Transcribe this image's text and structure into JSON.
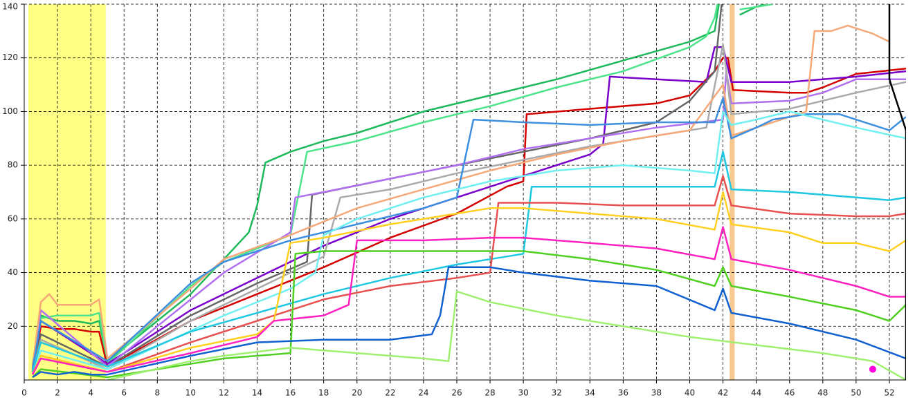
{
  "chart_data": {
    "type": "line",
    "xlim": [
      0,
      53
    ],
    "ylim": [
      0,
      140
    ],
    "xticks": [
      0,
      2,
      4,
      6,
      8,
      10,
      12,
      14,
      16,
      18,
      20,
      22,
      24,
      26,
      28,
      30,
      32,
      34,
      36,
      38,
      40,
      42,
      44,
      46,
      48,
      50,
      52
    ],
    "yticks": [
      20,
      40,
      60,
      80,
      100,
      120,
      140
    ],
    "grid": true,
    "bands": [
      {
        "x": [
          0.25,
          4.9
        ],
        "color": "#ffff70"
      },
      {
        "x": [
          42.4,
          42.7
        ],
        "color": "#f5c080"
      }
    ],
    "marker": {
      "x": 51,
      "y": 4,
      "color": "#ff00dd"
    },
    "series": [
      {
        "color": "#1db95a",
        "x": [
          0.5,
          1,
          2,
          3,
          4,
          4.5,
          5,
          8,
          10,
          12,
          13.5,
          14,
          14.5,
          16,
          18,
          20,
          24,
          28,
          32,
          36,
          40,
          41.5,
          42,
          42.4,
          43,
          44,
          44.5
        ],
        "values": [
          5,
          24,
          22,
          22,
          21,
          22,
          7,
          22,
          32,
          45,
          55,
          65,
          81,
          85,
          89,
          92,
          100,
          106,
          112,
          119,
          126,
          130,
          150,
          null,
          136,
          139,
          140
        ]
      },
      {
        "color": "#4de38a",
        "x": [
          0.5,
          1,
          2,
          3,
          4,
          4.5,
          5,
          10,
          12,
          16,
          17,
          20,
          24,
          28,
          32,
          36,
          40,
          41,
          41.5,
          42,
          42.4,
          43,
          45
        ],
        "values": [
          6,
          23,
          24,
          24,
          24,
          25,
          6,
          35,
          44,
          54,
          85,
          89,
          96,
          102,
          109,
          115,
          124,
          128,
          135,
          150,
          null,
          138,
          140
        ]
      },
      {
        "color": "#d40000",
        "x": [
          0.5,
          1,
          2,
          3,
          4,
          4.5,
          5,
          10,
          14,
          18,
          22,
          26,
          29,
          30,
          30.2,
          34,
          38,
          40,
          41.5,
          42,
          42.3,
          42.6,
          46,
          47,
          48,
          50,
          53
        ],
        "values": [
          3,
          20,
          19,
          19,
          18,
          18,
          5,
          22,
          32,
          42,
          53,
          62,
          72,
          74,
          99,
          101,
          103,
          106,
          115,
          120,
          120,
          108,
          107,
          107,
          109,
          114,
          116
        ]
      },
      {
        "color": "#7a00cc",
        "x": [
          0.5,
          1,
          5,
          10,
          14,
          18,
          22,
          26,
          30,
          34,
          34.8,
          35.2,
          38,
          41,
          41.5,
          42,
          42.5,
          46,
          50,
          53
        ],
        "values": [
          3,
          22,
          6,
          26,
          38,
          50,
          60,
          68,
          76,
          84,
          88,
          113,
          112,
          111,
          124,
          124,
          111,
          111,
          113,
          115
        ]
      },
      {
        "color": "#666666",
        "x": [
          0.5,
          1,
          5,
          10,
          14,
          17,
          17.3,
          22,
          26,
          30,
          34,
          38,
          40,
          41.5,
          42
        ],
        "values": [
          3,
          17,
          5,
          24,
          36,
          44,
          69,
          75,
          80,
          85,
          90,
          96,
          104,
          115,
          145
        ]
      },
      {
        "color": "#b070f0",
        "x": [
          0.5,
          1,
          5,
          12,
          16,
          16.3,
          18,
          22,
          26,
          30,
          34,
          38,
          42,
          42.2,
          42.5,
          46,
          48,
          50,
          53
        ],
        "values": [
          4,
          26,
          5,
          40,
          55,
          68,
          70,
          75,
          80,
          86,
          90,
          94,
          97,
          115,
          103,
          104,
          107,
          112,
          112
        ]
      },
      {
        "color": "#aaaaaa",
        "x": [
          0.5,
          1,
          5,
          10,
          16,
          18,
          19,
          22,
          26,
          30,
          34,
          38,
          41,
          42,
          42.5,
          46,
          50,
          53
        ],
        "values": [
          3,
          15,
          4,
          22,
          40,
          46,
          68,
          71,
          77,
          82,
          87,
          91,
          94,
          125,
          99,
          101,
          107,
          111
        ]
      },
      {
        "color": "#f5a878",
        "x": [
          0.5,
          1,
          1.5,
          2,
          3,
          4,
          4.5,
          5,
          10,
          12,
          16,
          20,
          24,
          28,
          32,
          36,
          40,
          42,
          42.5,
          46,
          47,
          47.5,
          48.5,
          49.5,
          51,
          52
        ],
        "values": [
          5,
          29,
          32,
          28,
          28,
          28,
          30,
          8,
          34,
          45,
          54,
          64,
          71,
          78,
          84,
          89,
          93,
          110,
          91,
          98,
          100,
          130,
          130,
          132,
          129,
          126
        ]
      },
      {
        "color": "#3d8fe0",
        "x": [
          0.5,
          1,
          5,
          10,
          12,
          16,
          20,
          24,
          26,
          27,
          30,
          34,
          38,
          41.5,
          42,
          42.5,
          44,
          45,
          47,
          49,
          52,
          53
        ],
        "values": [
          4,
          22,
          7,
          36,
          44,
          52,
          58,
          64,
          68,
          97,
          96,
          95,
          96,
          96,
          105,
          90,
          94,
          97,
          99,
          99,
          93,
          98
        ]
      },
      {
        "color": "#70f0f0",
        "x": [
          0.5,
          1,
          5,
          12,
          16,
          17.5,
          18,
          20,
          24,
          28,
          32,
          36,
          40,
          41.5,
          42,
          42.5,
          44,
          46,
          48,
          50,
          53
        ],
        "values": [
          2,
          11,
          4,
          24,
          34,
          40,
          54,
          60,
          68,
          74,
          78,
          80,
          78,
          77,
          100,
          95,
          97,
          100,
          97,
          94,
          90
        ]
      },
      {
        "color": "#1ec8e0",
        "x": [
          0.5,
          1,
          5,
          10,
          14,
          18,
          22,
          26,
          29,
          30,
          30.5,
          34,
          38,
          41.5,
          42,
          42.5,
          46,
          50,
          52,
          53
        ],
        "values": [
          3,
          14,
          5,
          18,
          25,
          32,
          38,
          43,
          46,
          47,
          72,
          72,
          72,
          72,
          85,
          71,
          70,
          68,
          67,
          68
        ]
      },
      {
        "color": "#e85050",
        "x": [
          0.5,
          1,
          5,
          10,
          14,
          18,
          22,
          26,
          28,
          28.5,
          32,
          36,
          41.5,
          42,
          42.5,
          46,
          50,
          52,
          53
        ],
        "values": [
          2,
          9,
          3,
          14,
          22,
          30,
          35,
          38,
          40,
          66,
          66,
          65,
          65,
          76,
          65,
          62,
          61,
          61,
          62
        ]
      },
      {
        "color": "#ffd020",
        "x": [
          0.5,
          1,
          5,
          10,
          14,
          15,
          16,
          18,
          22,
          26,
          28,
          30,
          34,
          38,
          41.5,
          42,
          42.5,
          46,
          48,
          50,
          52,
          53
        ],
        "values": [
          2,
          9,
          3,
          12,
          17,
          22,
          51,
          53,
          58,
          62,
          64,
          64,
          62,
          60,
          56,
          70,
          58,
          55,
          51,
          51,
          48,
          52
        ]
      },
      {
        "color": "#ff20c0",
        "x": [
          0.5,
          1,
          5,
          10,
          14,
          15,
          18,
          19.5,
          20,
          24,
          28,
          30,
          34,
          38,
          41.5,
          42,
          42.5,
          46,
          50,
          52,
          53
        ],
        "values": [
          2,
          8,
          3,
          10,
          16,
          22,
          24,
          28,
          52,
          52,
          53,
          53,
          51,
          49,
          45,
          57,
          45,
          41,
          35,
          31,
          31
        ]
      },
      {
        "color": "#50d020",
        "x": [
          0.5,
          1,
          5,
          10,
          12,
          14,
          16,
          16.3,
          18,
          20,
          24,
          28,
          30,
          34,
          38,
          41.5,
          42,
          42.5,
          46,
          50,
          52,
          53
        ],
        "values": [
          1,
          4,
          1,
          6,
          8,
          9,
          10,
          47,
          48,
          48,
          48,
          48,
          48,
          45,
          41,
          35,
          42,
          35,
          31,
          26,
          22,
          28
        ]
      },
      {
        "color": "#1060d0",
        "x": [
          0.5,
          1,
          2,
          3,
          4,
          5,
          10,
          14,
          18,
          22,
          24.5,
          25,
          25.5,
          28,
          30,
          34,
          38,
          41.5,
          42,
          42.5,
          46,
          50,
          53
        ],
        "values": [
          1,
          3,
          2,
          3,
          2,
          2,
          9,
          14,
          15,
          15,
          17,
          24,
          42,
          42,
          40,
          37,
          35,
          26,
          34,
          25,
          21,
          15,
          8
        ]
      },
      {
        "color": "#a0f070",
        "x": [
          5,
          10,
          12,
          16,
          20,
          24,
          25.5,
          26,
          28,
          32,
          36,
          40,
          44,
          48,
          50,
          51,
          53
        ],
        "values": [
          0,
          7,
          9,
          12,
          10,
          8,
          7,
          33,
          29,
          24,
          20,
          16,
          13,
          10,
          8,
          7,
          0
        ]
      },
      {
        "color": "#000000",
        "x": [
          52,
          52,
          53,
          53
        ],
        "values": [
          140,
          112,
          93,
          0
        ]
      }
    ]
  }
}
